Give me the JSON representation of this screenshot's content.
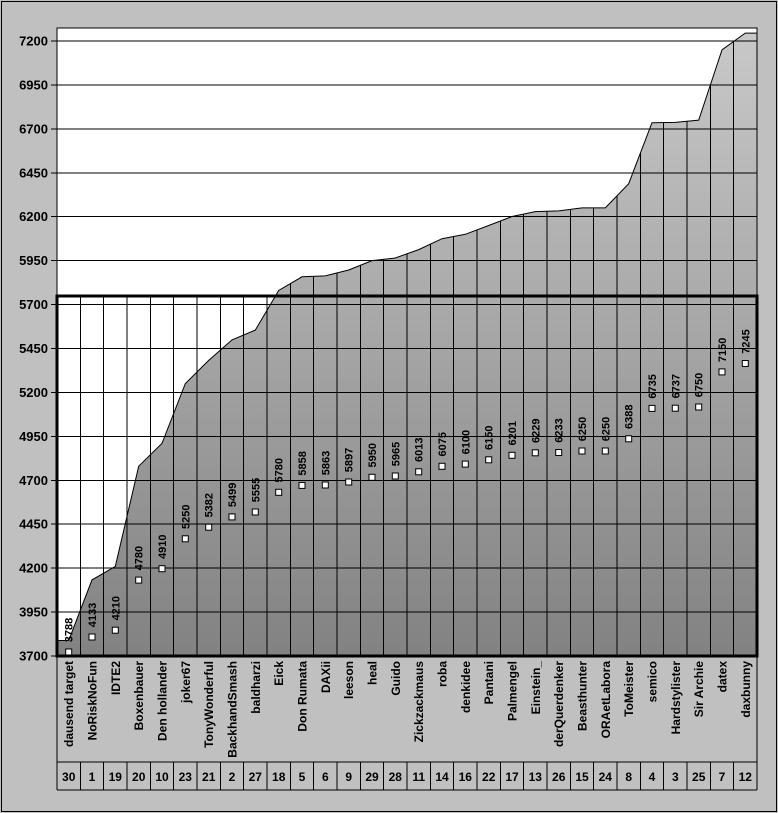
{
  "chart_data": {
    "type": "area",
    "title": "",
    "xlabel": "",
    "ylabel": "",
    "legend": "none",
    "grid": "horizontal",
    "categories": [
      "dausend target",
      "NoRiskNoFun",
      "IDTE2",
      "Boxenbauer",
      "Den hollander",
      "joker67",
      "TonyWonderful",
      "BackhandSmash",
      "baldharzi",
      "Eick",
      "Don Rumata",
      "DAXii",
      "leeson",
      "heal",
      "Guido",
      "Zickzackmaus",
      "roba",
      "denkidee",
      "Pantani",
      "Palmengel",
      "Einstein_",
      "derQuerdenker",
      "Beasthunter",
      "ORAetLabora",
      "ToMeister",
      "semico",
      "Hardstylister",
      "Sir Archie",
      "datex",
      "daxbunny"
    ],
    "ranks": [
      "30",
      "1",
      "19",
      "20",
      "10",
      "23",
      "21",
      "2",
      "27",
      "18",
      "5",
      "6",
      "9",
      "29",
      "28",
      "11",
      "14",
      "16",
      "22",
      "17",
      "13",
      "26",
      "15",
      "24",
      "8",
      "4",
      "3",
      "25",
      "7",
      "12"
    ],
    "values": [
      3788,
      4133,
      4210,
      4780,
      4910,
      5250,
      5382,
      5499,
      5555,
      5780,
      5858,
      5863,
      5897,
      5950,
      5965,
      6013,
      6075,
      6100,
      6150,
      6201,
      6229,
      6233,
      6250,
      6250,
      6388,
      6735,
      6737,
      6750,
      7150,
      7245
    ],
    "ylim": [
      3700,
      7200
    ],
    "yticks": [
      3700,
      3950,
      4200,
      4450,
      4700,
      4950,
      5200,
      5450,
      5700,
      5950,
      6200,
      6450,
      6700,
      6950,
      7200
    ],
    "target_line": 5750,
    "data_labels": "series values, rotated 90deg, legend-key square below text, inside-center of area"
  },
  "style": {
    "frame_bg": "#c0c0c0",
    "plot_bg": "#ffffff",
    "grid_color": "#000000",
    "line_color": "#000000",
    "area_gradient_top": "#c9c9c9",
    "area_gradient_bottom": "#828282",
    "marker_fill": "#ffffff",
    "marker_border": "#000000",
    "text_color": "#000000"
  }
}
